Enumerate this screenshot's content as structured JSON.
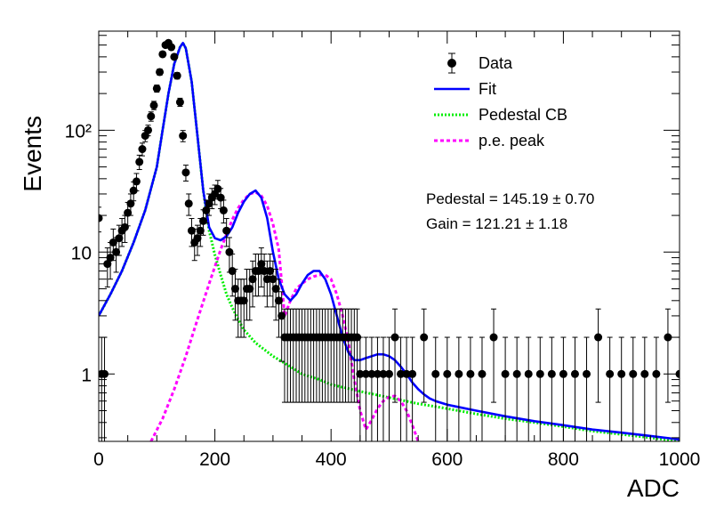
{
  "chart_data": {
    "type": "scatter",
    "title": "",
    "xlabel": "ADC",
    "ylabel": "Events",
    "xlim": [
      0,
      1000
    ],
    "ylim": [
      0.28,
      650
    ],
    "yscale": "log",
    "grid": false,
    "x_ticks": [
      0,
      200,
      400,
      600,
      800,
      1000
    ],
    "x_tick_labels": [
      "0",
      "200",
      "400",
      "600",
      "800",
      "1000"
    ],
    "y_ticks": [
      1,
      10,
      100
    ],
    "y_tick_labels": [
      "1",
      "10",
      "10²"
    ],
    "legend": {
      "position": "top-right",
      "entries": [
        {
          "label": "Data",
          "color": "#000000",
          "style": "marker-errorbar"
        },
        {
          "label": "Fit",
          "color": "#0000ff",
          "style": "solid"
        },
        {
          "label": "Pedestal CB",
          "color": "#00ff00",
          "style": "dotted"
        },
        {
          "label": "p.e. peak",
          "color": "#ff00ff",
          "style": "dashed"
        }
      ]
    },
    "annotations": [
      {
        "label": "Pedestal = 145.19 ± 0.70"
      },
      {
        "label": "Gain = 121.21 ± 1.18"
      }
    ],
    "fit_params": {
      "pedestal": 145.19,
      "pedestal_err": 0.7,
      "gain": 121.21,
      "gain_err": 1.18
    },
    "series": [
      {
        "name": "Data",
        "color": "#000000",
        "kind": "points",
        "x": [
          0,
          5,
          10,
          15,
          20,
          25,
          30,
          35,
          40,
          45,
          50,
          55,
          60,
          65,
          70,
          75,
          80,
          85,
          90,
          95,
          100,
          105,
          110,
          115,
          120,
          125,
          130,
          135,
          140,
          145,
          150,
          155,
          160,
          165,
          170,
          175,
          180,
          185,
          190,
          195,
          200,
          205,
          210,
          215,
          220,
          225,
          230,
          235,
          240,
          245,
          250,
          255,
          260,
          265,
          270,
          275,
          280,
          285,
          290,
          295,
          300,
          305,
          310,
          315,
          320,
          325,
          330,
          335,
          340,
          345,
          350,
          355,
          360,
          365,
          370,
          375,
          380,
          385,
          390,
          395,
          400,
          405,
          410,
          415,
          420,
          425,
          430,
          435,
          440,
          445,
          450,
          460,
          470,
          480,
          490,
          500,
          510,
          520,
          530,
          540,
          560,
          580,
          600,
          620,
          640,
          660,
          680,
          700,
          720,
          740,
          760,
          780,
          800,
          820,
          840,
          860,
          880,
          900,
          920,
          940,
          960,
          980,
          1000
        ],
        "y": [
          19,
          1,
          1,
          8,
          9,
          12,
          10,
          13,
          15,
          16,
          21,
          25,
          32,
          38,
          55,
          70,
          90,
          100,
          130,
          160,
          220,
          300,
          420,
          500,
          520,
          480,
          400,
          280,
          170,
          90,
          45,
          25,
          15,
          12,
          13,
          15,
          18,
          22,
          25,
          28,
          30,
          33,
          28,
          22,
          15,
          10,
          7,
          5,
          4,
          4,
          4,
          5,
          5,
          6,
          7,
          7,
          8,
          7,
          6,
          7,
          6,
          5,
          4,
          3,
          2,
          2,
          2,
          2,
          2,
          2,
          2,
          2,
          2,
          2,
          2,
          2,
          2,
          2,
          2,
          2,
          2,
          2,
          2,
          2,
          2,
          2,
          2,
          2,
          2,
          2,
          1,
          1,
          1,
          1,
          1,
          1,
          2,
          1,
          1,
          1,
          2,
          1,
          1,
          1,
          1,
          1,
          2,
          1,
          1,
          1,
          1,
          1,
          1,
          1,
          1,
          2,
          1,
          1,
          1,
          1,
          1,
          2,
          1
        ]
      },
      {
        "name": "Fit",
        "color": "#0000ff",
        "kind": "line",
        "x": [
          0,
          20,
          40,
          60,
          80,
          100,
          110,
          120,
          130,
          140,
          145,
          150,
          160,
          170,
          180,
          190,
          200,
          210,
          220,
          230,
          240,
          250,
          260,
          270,
          280,
          290,
          300,
          310,
          320,
          330,
          340,
          350,
          360,
          370,
          380,
          390,
          400,
          410,
          420,
          430,
          440,
          450,
          460,
          470,
          480,
          490,
          500,
          510,
          520,
          530,
          540,
          550,
          560,
          570,
          580,
          600,
          650,
          700,
          750,
          800,
          850,
          900,
          950,
          1000
        ],
        "y": [
          3,
          4.5,
          7,
          12,
          22,
          50,
          100,
          200,
          350,
          480,
          520,
          470,
          250,
          90,
          32,
          16,
          13,
          12.5,
          13.5,
          16,
          21,
          26,
          30,
          32,
          28,
          19,
          10,
          6,
          4.5,
          4,
          4.5,
          5.5,
          6.5,
          7,
          7,
          6,
          4.5,
          3,
          2,
          1.5,
          1.3,
          1.3,
          1.35,
          1.4,
          1.45,
          1.45,
          1.4,
          1.3,
          1.15,
          1,
          0.85,
          0.75,
          0.68,
          0.63,
          0.6,
          0.56,
          0.5,
          0.45,
          0.41,
          0.38,
          0.35,
          0.33,
          0.31,
          0.29
        ]
      },
      {
        "name": "Pedestal CB",
        "color": "#00ff00",
        "kind": "line",
        "x": [
          0,
          20,
          40,
          60,
          80,
          100,
          110,
          120,
          130,
          140,
          145,
          150,
          160,
          170,
          180,
          190,
          200,
          210,
          220,
          230,
          240,
          250,
          270,
          300,
          330,
          350,
          380,
          400,
          450,
          500,
          550,
          600,
          650,
          700,
          750,
          800,
          850,
          900,
          950,
          1000
        ],
        "y": [
          3,
          4.5,
          7,
          12,
          22,
          50,
          100,
          200,
          350,
          480,
          520,
          470,
          250,
          90,
          32,
          15,
          9.5,
          6.5,
          4.5,
          3.5,
          2.8,
          2.3,
          1.8,
          1.4,
          1.15,
          1,
          0.9,
          0.82,
          0.72,
          0.64,
          0.57,
          0.52,
          0.47,
          0.43,
          0.4,
          0.37,
          0.34,
          0.32,
          0.3,
          0.28
        ]
      },
      {
        "name": "p.e. peak",
        "color": "#ff00ff",
        "kind": "line",
        "x": [
          90,
          110,
          130,
          150,
          170,
          190,
          210,
          220,
          230,
          240,
          250,
          260,
          270,
          280,
          290,
          300,
          310,
          320,
          330,
          340,
          350,
          360,
          370,
          380,
          390,
          400,
          410,
          420,
          430,
          440,
          450,
          460,
          470,
          480,
          490,
          500,
          510,
          520,
          530,
          540,
          550
        ],
        "y": [
          0.28,
          0.43,
          0.75,
          1.4,
          2.8,
          5.5,
          10.5,
          14,
          18.5,
          23,
          27,
          30,
          31,
          29,
          24,
          17,
          10.5,
          3,
          4,
          5,
          5.5,
          6,
          6.3,
          6.5,
          6.5,
          6,
          4.5,
          3,
          1.8,
          0.9,
          0.5,
          0.35,
          0.42,
          0.52,
          0.6,
          0.65,
          0.66,
          0.6,
          0.5,
          0.38,
          0.28
        ]
      }
    ]
  }
}
